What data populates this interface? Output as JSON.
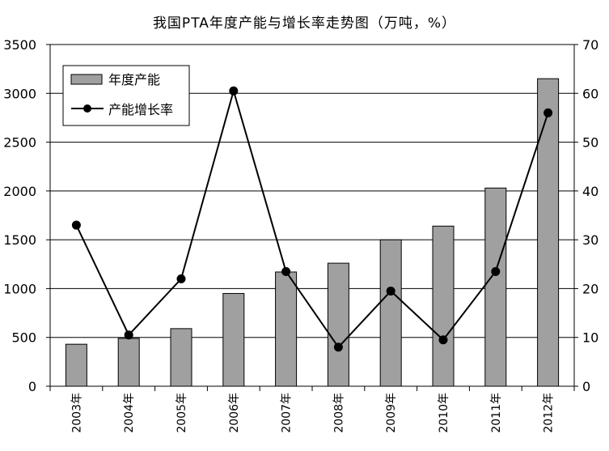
{
  "chart_data": {
    "type": "bar",
    "title": "我国PTA年度产能与增长率走势图（万吨，%）",
    "categories": [
      "2003年",
      "2004年",
      "2005年",
      "2006年",
      "2007年",
      "2008年",
      "2009年",
      "2010年",
      "2011年",
      "2012年"
    ],
    "series": [
      {
        "name": "年度产能",
        "type": "bar",
        "axis": "left",
        "values": [
          430,
          490,
          590,
          950,
          1170,
          1260,
          1500,
          1640,
          2030,
          3150
        ]
      },
      {
        "name": "产能增长率",
        "type": "line",
        "axis": "right",
        "values": [
          33,
          10.5,
          22,
          60.5,
          23.5,
          8,
          19.5,
          9.5,
          23.5,
          56
        ]
      }
    ],
    "y_left": {
      "min": 0,
      "max": 3500,
      "ticks": [
        0,
        500,
        1000,
        1500,
        2000,
        2500,
        3000,
        3500
      ]
    },
    "y_right": {
      "min": 0,
      "max": 70,
      "ticks": [
        0,
        10,
        20,
        30,
        40,
        50,
        60,
        70
      ]
    },
    "grid": true,
    "legend_position": "top-left",
    "colors": {
      "bar": "#a0a0a0",
      "line": "#000000"
    }
  }
}
